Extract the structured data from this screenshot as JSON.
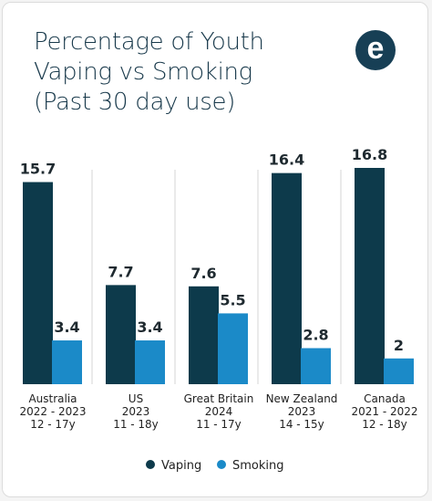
{
  "title_lines": [
    "Percentage of Youth",
    "Vaping vs Smoking",
    "(Past 30 day use)"
  ],
  "logo_letter": "e",
  "colors": {
    "vaping": "#0d3a4b",
    "smoking": "#1b8ac8",
    "logo": "#173f55",
    "title": "#17384a"
  },
  "chart_data": {
    "type": "bar",
    "title": "Percentage of Youth Vaping vs Smoking (Past 30 day use)",
    "categories": [
      [
        "Australia",
        "2022 - 2023",
        "12 - 17y"
      ],
      [
        "US",
        "2023",
        "11 - 18y"
      ],
      [
        "Great Britain",
        "2024",
        "11 - 17y"
      ],
      [
        "New Zealand",
        "2023",
        "14 - 15y"
      ],
      [
        "Canada",
        "2021 - 2022",
        "12 - 18y"
      ]
    ],
    "series": [
      {
        "name": "Vaping",
        "values": [
          15.7,
          7.7,
          7.6,
          16.4,
          16.8
        ],
        "labels": [
          "15.7",
          "7.7",
          "7.6",
          "16.4",
          "16.8"
        ]
      },
      {
        "name": "Smoking",
        "values": [
          3.4,
          3.4,
          5.5,
          2.8,
          2
        ],
        "labels": [
          "3.4",
          "3.4",
          "5.5",
          "2.8",
          "2"
        ]
      }
    ],
    "ylim": [
      0,
      16.8
    ],
    "grid": false,
    "legend": "bottom-center"
  }
}
